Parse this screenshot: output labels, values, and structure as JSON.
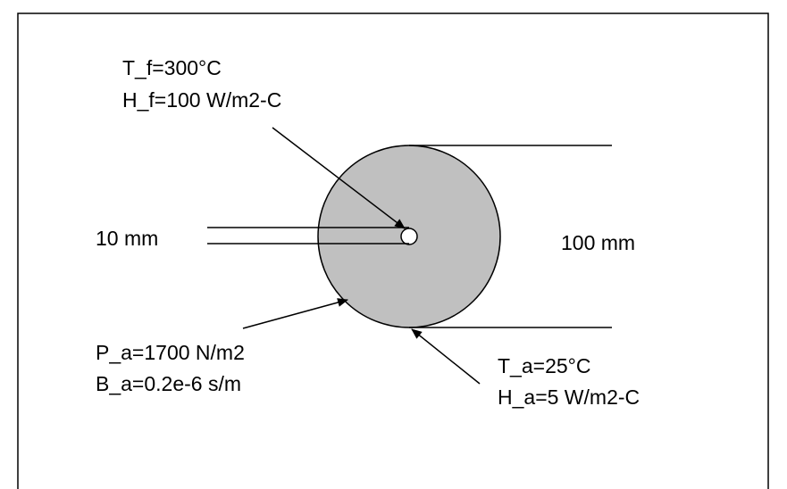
{
  "fluid": {
    "temperature": "T_f=300°C",
    "coefficient": "H_f=100 W/m2-C"
  },
  "inner_diameter": "10 mm",
  "outer_diameter": "100 mm",
  "pressure": {
    "pressure": "P_a=1700 N/m2",
    "coefficient": "B_a=0.2e-6 s/m"
  },
  "ambient": {
    "temperature": "T_a=25°C",
    "coefficient": "H_a=5 W/m2-C"
  }
}
